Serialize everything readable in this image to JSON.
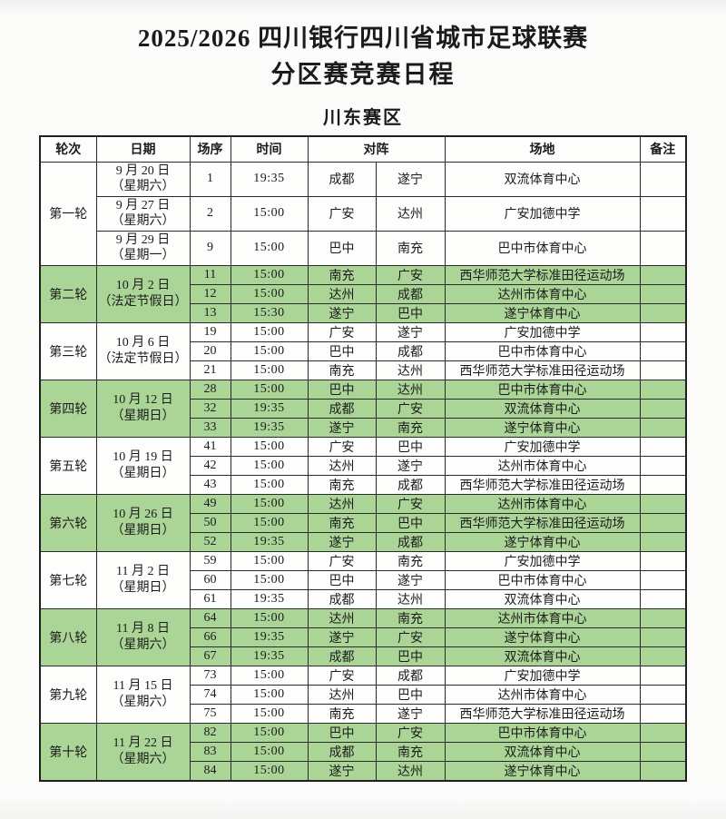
{
  "title_line1": "2025/2026 四川银行四川省城市足球联赛",
  "title_line2": "分区赛竞赛日程",
  "section_title": "川东赛区",
  "colors": {
    "highlight_row_green": "#abd497",
    "plain_row": "#fdfdfc",
    "border": "#2a2a2a",
    "text": "#1b1b1b"
  },
  "table": {
    "headers": {
      "round": "轮次",
      "date": "日期",
      "match_no": "场序",
      "time": "时间",
      "matchup": "对阵",
      "venue": "场地",
      "remark": "备注"
    },
    "rounds": [
      {
        "round": "第一轮",
        "highlight": false,
        "per_row_dates": true,
        "matches": [
          {
            "date_line1": "9 月 20 日",
            "date_line2": "（星期六）",
            "no": "1",
            "time": "19:35",
            "home": "成都",
            "away": "遂宁",
            "venue": "双流体育中心",
            "remark": ""
          },
          {
            "date_line1": "9 月 27 日",
            "date_line2": "（星期六）",
            "no": "2",
            "time": "15:00",
            "home": "广安",
            "away": "达州",
            "venue": "广安加德中学",
            "remark": ""
          },
          {
            "date_line1": "9 月 29 日",
            "date_line2": "（星期一）",
            "no": "9",
            "time": "15:00",
            "home": "巴中",
            "away": "南充",
            "venue": "巴中市体育中心",
            "remark": ""
          }
        ]
      },
      {
        "round": "第二轮",
        "highlight": true,
        "per_row_dates": false,
        "date_line1": "10 月 2 日",
        "date_line2": "（法定节假日）",
        "matches": [
          {
            "no": "11",
            "time": "15:00",
            "home": "南充",
            "away": "广安",
            "venue": "西华师范大学标准田径运动场",
            "remark": ""
          },
          {
            "no": "12",
            "time": "15:00",
            "home": "达州",
            "away": "成都",
            "venue": "达州市体育中心",
            "remark": ""
          },
          {
            "no": "13",
            "time": "15:30",
            "home": "遂宁",
            "away": "巴中",
            "venue": "遂宁体育中心",
            "remark": ""
          }
        ]
      },
      {
        "round": "第三轮",
        "highlight": false,
        "per_row_dates": false,
        "date_line1": "10 月 6 日",
        "date_line2": "（法定节假日）",
        "matches": [
          {
            "no": "19",
            "time": "15:00",
            "home": "广安",
            "away": "遂宁",
            "venue": "广安加德中学",
            "remark": ""
          },
          {
            "no": "20",
            "time": "15:00",
            "home": "巴中",
            "away": "成都",
            "venue": "巴中市体育中心",
            "remark": ""
          },
          {
            "no": "21",
            "time": "15:00",
            "home": "南充",
            "away": "达州",
            "venue": "西华师范大学标准田径运动场",
            "remark": ""
          }
        ]
      },
      {
        "round": "第四轮",
        "highlight": true,
        "per_row_dates": false,
        "date_line1": "10 月 12 日",
        "date_line2": "（星期日）",
        "matches": [
          {
            "no": "28",
            "time": "15:00",
            "home": "巴中",
            "away": "达州",
            "venue": "巴中市体育中心",
            "remark": ""
          },
          {
            "no": "32",
            "time": "19:35",
            "home": "成都",
            "away": "广安",
            "venue": "双流体育中心",
            "remark": ""
          },
          {
            "no": "33",
            "time": "19:35",
            "home": "遂宁",
            "away": "南充",
            "venue": "遂宁体育中心",
            "remark": ""
          }
        ]
      },
      {
        "round": "第五轮",
        "highlight": false,
        "per_row_dates": false,
        "date_line1": "10 月 19 日",
        "date_line2": "（星期日）",
        "matches": [
          {
            "no": "41",
            "time": "15:00",
            "home": "广安",
            "away": "巴中",
            "venue": "广安加德中学",
            "remark": ""
          },
          {
            "no": "42",
            "time": "15:00",
            "home": "达州",
            "away": "遂宁",
            "venue": "达州市体育中心",
            "remark": ""
          },
          {
            "no": "43",
            "time": "15:00",
            "home": "南充",
            "away": "成都",
            "venue": "西华师范大学标准田径运动场",
            "remark": ""
          }
        ]
      },
      {
        "round": "第六轮",
        "highlight": true,
        "per_row_dates": false,
        "date_line1": "10 月 26 日",
        "date_line2": "（星期日）",
        "matches": [
          {
            "no": "49",
            "time": "15:00",
            "home": "达州",
            "away": "广安",
            "venue": "达州市体育中心",
            "remark": ""
          },
          {
            "no": "50",
            "time": "15:00",
            "home": "南充",
            "away": "巴中",
            "venue": "西华师范大学标准田径运动场",
            "remark": ""
          },
          {
            "no": "52",
            "time": "19:35",
            "home": "遂宁",
            "away": "成都",
            "venue": "遂宁体育中心",
            "remark": ""
          }
        ]
      },
      {
        "round": "第七轮",
        "highlight": false,
        "per_row_dates": false,
        "date_line1": "11 月 2 日",
        "date_line2": "（星期日）",
        "matches": [
          {
            "no": "59",
            "time": "15:00",
            "home": "广安",
            "away": "南充",
            "venue": "广安加德中学",
            "remark": ""
          },
          {
            "no": "60",
            "time": "15:00",
            "home": "巴中",
            "away": "遂宁",
            "venue": "巴中市体育中心",
            "remark": ""
          },
          {
            "no": "61",
            "time": "19:35",
            "home": "成都",
            "away": "达州",
            "venue": "双流体育中心",
            "remark": ""
          }
        ]
      },
      {
        "round": "第八轮",
        "highlight": true,
        "per_row_dates": false,
        "date_line1": "11 月 8 日",
        "date_line2": "（星期六）",
        "matches": [
          {
            "no": "64",
            "time": "15:00",
            "home": "达州",
            "away": "南充",
            "venue": "达州市体育中心",
            "remark": ""
          },
          {
            "no": "66",
            "time": "19:35",
            "home": "遂宁",
            "away": "广安",
            "venue": "遂宁体育中心",
            "remark": ""
          },
          {
            "no": "67",
            "time": "19:35",
            "home": "成都",
            "away": "巴中",
            "venue": "双流体育中心",
            "remark": ""
          }
        ]
      },
      {
        "round": "第九轮",
        "highlight": false,
        "per_row_dates": false,
        "date_line1": "11 月 15 日",
        "date_line2": "（星期六）",
        "matches": [
          {
            "no": "73",
            "time": "15:00",
            "home": "广安",
            "away": "成都",
            "venue": "广安加德中学",
            "remark": ""
          },
          {
            "no": "74",
            "time": "15:00",
            "home": "达州",
            "away": "巴中",
            "venue": "达州市体育中心",
            "remark": ""
          },
          {
            "no": "75",
            "time": "15:00",
            "home": "南充",
            "away": "遂宁",
            "venue": "西华师范大学标准田径运动场",
            "remark": ""
          }
        ]
      },
      {
        "round": "第十轮",
        "highlight": true,
        "per_row_dates": false,
        "date_line1": "11 月 22 日",
        "date_line2": "（星期六）",
        "matches": [
          {
            "no": "82",
            "time": "15:00",
            "home": "巴中",
            "away": "广安",
            "venue": "巴中市体育中心",
            "remark": ""
          },
          {
            "no": "83",
            "time": "15:00",
            "home": "成都",
            "away": "南充",
            "venue": "双流体育中心",
            "remark": ""
          },
          {
            "no": "84",
            "time": "15:00",
            "home": "遂宁",
            "away": "达州",
            "venue": "遂宁体育中心",
            "remark": ""
          }
        ]
      }
    ]
  }
}
